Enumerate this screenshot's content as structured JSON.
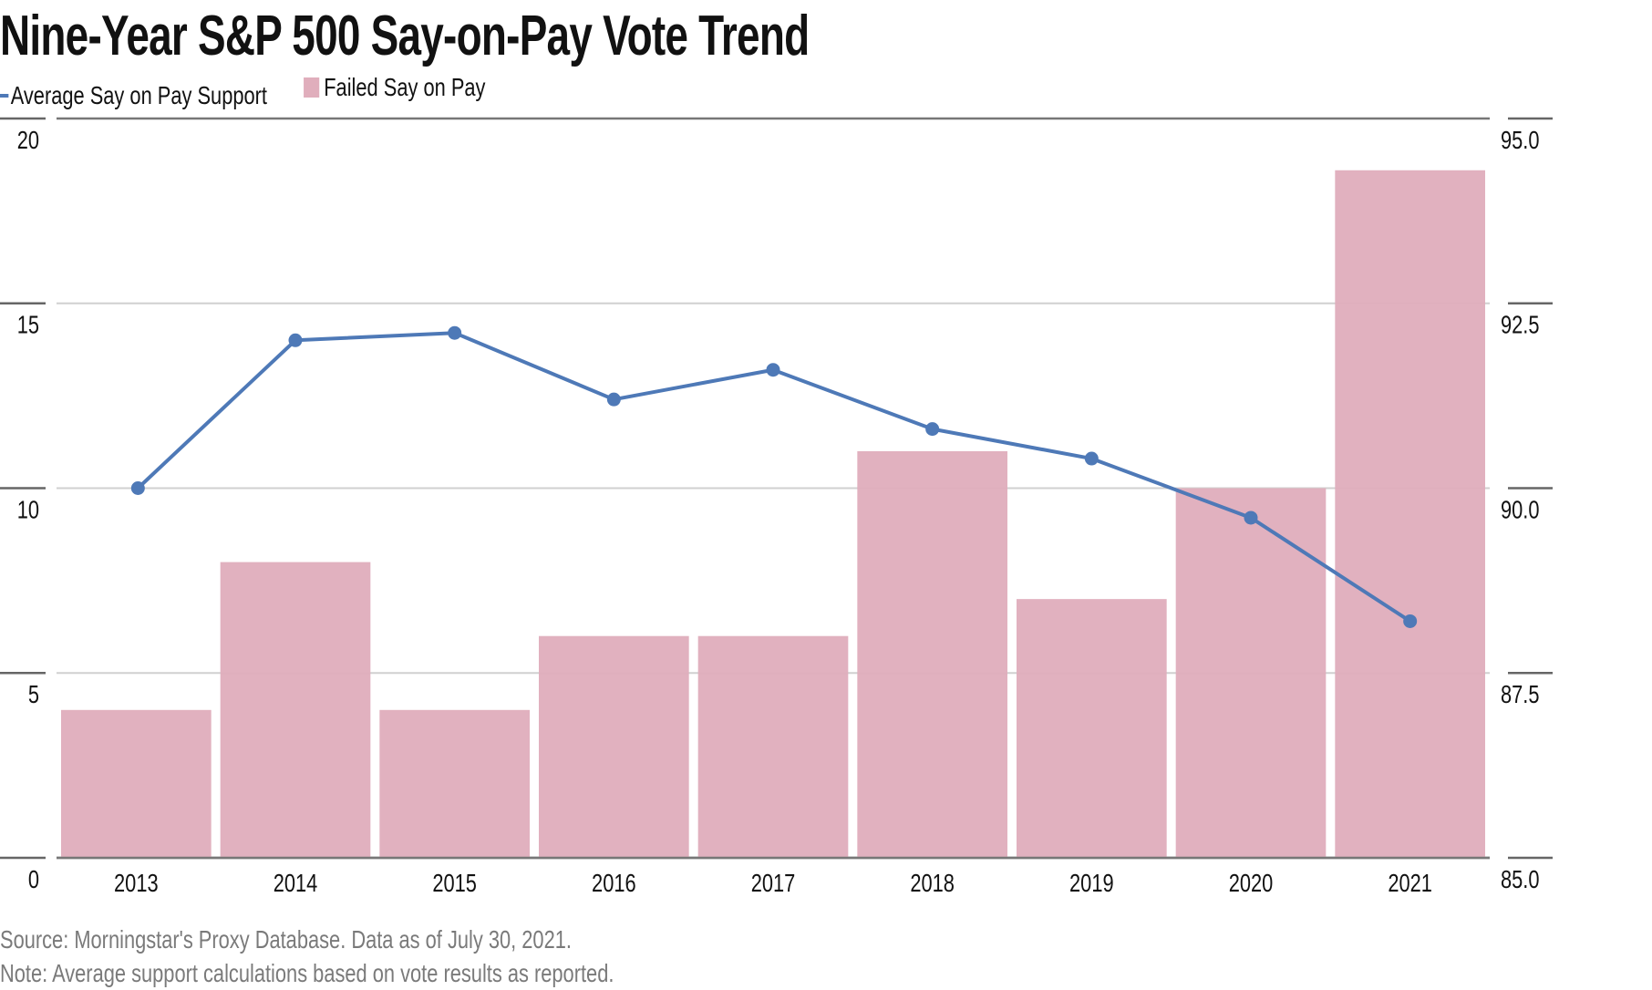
{
  "chart_data": {
    "type": "bar+line",
    "title": "Nine-Year S&P 500 Say-on-Pay Vote Trend",
    "categories": [
      "2013",
      "2014",
      "2015",
      "2016",
      "2017",
      "2018",
      "2019",
      "2020",
      "2021"
    ],
    "series": [
      {
        "name": "Failed Say on Pay",
        "type": "bar",
        "axis": "left",
        "color": "#e0aebc",
        "values": [
          4,
          8,
          4,
          6,
          6,
          11,
          7,
          10,
          18.6
        ]
      },
      {
        "name": "Average Say on Pay Support",
        "type": "line",
        "axis": "right",
        "color": "#4e79b7",
        "values": [
          90.0,
          92.0,
          92.1,
          91.2,
          91.6,
          90.8,
          90.4,
          89.6,
          88.2
        ]
      }
    ],
    "y_left": {
      "ylim": [
        0,
        20
      ],
      "ticks": [
        "0",
        "5",
        "10",
        "15",
        "20"
      ],
      "tick_values": [
        0,
        5,
        10,
        15,
        20
      ]
    },
    "y_right": {
      "ylim": [
        85.0,
        95.0
      ],
      "ticks": [
        "85.0",
        "87.5",
        "90.0",
        "92.5",
        "95.0"
      ],
      "tick_values": [
        85.0,
        87.5,
        90.0,
        92.5,
        95.0
      ]
    },
    "xlabel": "",
    "grid": true,
    "legend_position": "top-left",
    "legend": [
      "Average Say on Pay Support",
      "Failed Say on Pay"
    ]
  },
  "footer": {
    "source": "Source: Morningstar's Proxy Database. Data as of July 30, 2021.",
    "note": "Note: Average support calculations based on vote results as reported."
  }
}
